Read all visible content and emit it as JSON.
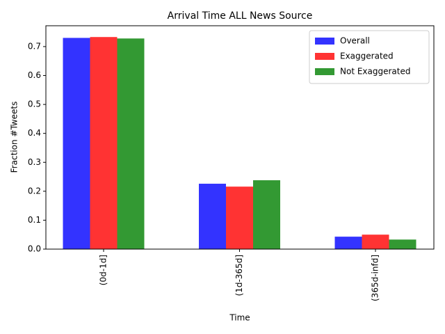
{
  "chart_data": {
    "type": "bar",
    "title": "Arrival Time ALL News Source",
    "x_label": "Time",
    "y_label": "Fraction #Tweets",
    "categories": [
      "(0d-1d]",
      "(1d-365d]",
      "(365d-infd]"
    ],
    "series": [
      {
        "name": "Overall",
        "color": "#3333ff",
        "values": [
          0.73,
          0.226,
          0.043
        ]
      },
      {
        "name": "Exaggerated",
        "color": "#ff3333",
        "values": [
          0.733,
          0.216,
          0.05
        ]
      },
      {
        "name": "Not Exaggerated",
        "color": "#339933",
        "values": [
          0.728,
          0.238,
          0.033
        ]
      }
    ],
    "ylim": [
      0,
      0.772
    ],
    "yticks": [
      {
        "value": 0,
        "label": "0.0"
      },
      0.1,
      0.2,
      0.3,
      0.4,
      0.5,
      0.6,
      0.7
    ],
    "legend": "upper right",
    "grid": false
  }
}
